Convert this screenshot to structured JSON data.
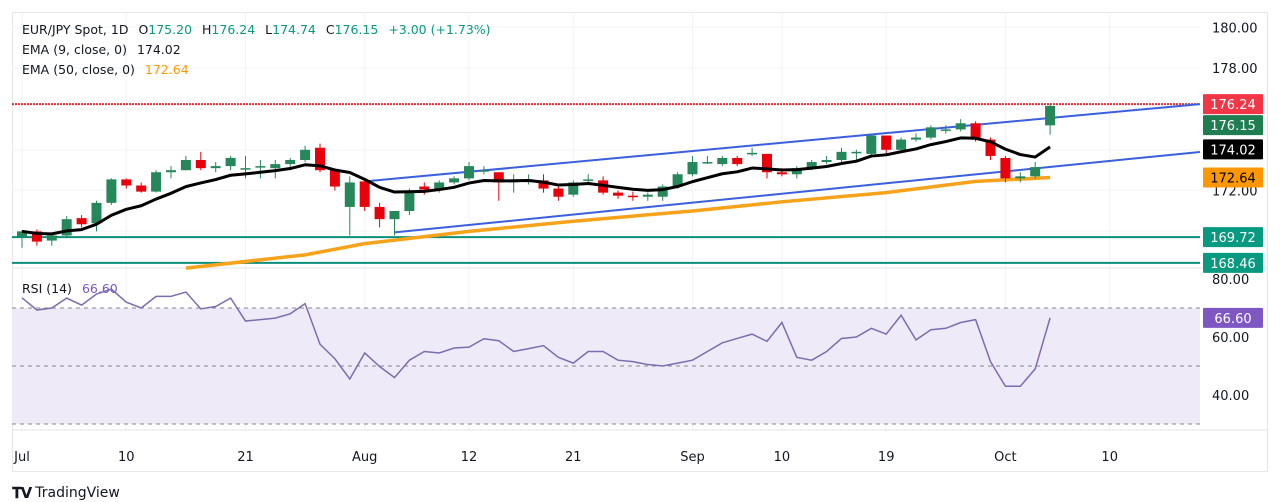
{
  "legend": {
    "symbol": "EUR/JPY Spot, 1D",
    "open_label": "O",
    "open": "175.20",
    "high_label": "H",
    "high": "176.24",
    "low_label": "L",
    "low": "174.74",
    "close_label": "C",
    "close": "176.15",
    "change": "+3.00 (+1.73%)",
    "ema9_label": "EMA (9, close, 0)",
    "ema9_value": "174.02",
    "ema50_label": "EMA (50, close, 0)",
    "ema50_value": "172.64",
    "rsi_label": "RSI (14)",
    "rsi_value": "66.60"
  },
  "footer": {
    "brand": "TradingView",
    "logo_icon": "tradingview-logo-icon"
  },
  "colors": {
    "up": "#26875a",
    "down": "#e8000b",
    "ema9": "#000000",
    "ema50": "#f7a21b",
    "channel": "#3a5fe0",
    "support": "#0b8f7a",
    "resistance": "#e0313f",
    "rsi": "#7e6bb0",
    "rsi_band": "#efeaf8"
  },
  "chart_data": [
    {
      "type": "candlestick",
      "title": "EUR/JPY Spot, 1D",
      "ylim": [
        167.8,
        180.6
      ],
      "price_ticks": [
        "180.00",
        "178.00",
        "172.00"
      ],
      "x_ticks": [
        {
          "label": "Jul",
          "date": "2024-07-01"
        },
        {
          "label": "10",
          "date": "2024-07-10"
        },
        {
          "label": "21",
          "date": "2024-07-22"
        },
        {
          "label": "Aug",
          "date": "2024-08-01"
        },
        {
          "label": "12",
          "date": "2024-08-12"
        },
        {
          "label": "21",
          "date": "2024-08-21"
        },
        {
          "label": "Sep",
          "date": "2024-09-02"
        },
        {
          "label": "10",
          "date": "2024-09-10"
        },
        {
          "label": "19",
          "date": "2024-09-19"
        },
        {
          "label": "Oct",
          "date": "2024-10-01"
        },
        {
          "label": "10",
          "date": "2024-10-10"
        }
      ],
      "columns": [
        "date",
        "open",
        "high",
        "low",
        "close"
      ],
      "candles": [
        [
          "2024-07-01",
          169.75,
          170.05,
          169.2,
          170.0
        ],
        [
          "2024-07-02",
          170.0,
          170.1,
          169.3,
          169.5
        ],
        [
          "2024-07-03",
          169.55,
          169.95,
          169.3,
          169.8
        ],
        [
          "2024-07-04",
          169.8,
          170.75,
          169.7,
          170.6
        ],
        [
          "2024-07-05",
          170.65,
          170.8,
          170.2,
          170.35
        ],
        [
          "2024-07-08",
          170.4,
          171.5,
          170.0,
          171.4
        ],
        [
          "2024-07-09",
          171.4,
          172.6,
          171.3,
          172.55
        ],
        [
          "2024-07-10",
          172.55,
          172.6,
          172.1,
          172.25
        ],
        [
          "2024-07-11",
          172.25,
          172.4,
          171.9,
          171.95
        ],
        [
          "2024-07-12",
          171.95,
          173.0,
          171.9,
          172.9
        ],
        [
          "2024-07-15",
          172.9,
          173.2,
          172.6,
          173.0
        ],
        [
          "2024-07-16",
          173.0,
          173.7,
          173.0,
          173.5
        ],
        [
          "2024-07-17",
          173.5,
          173.9,
          173.0,
          173.1
        ],
        [
          "2024-07-18",
          173.1,
          173.4,
          172.9,
          173.2
        ],
        [
          "2024-07-19",
          173.2,
          173.7,
          173.0,
          173.6
        ],
        [
          "2024-07-22",
          173.1,
          173.7,
          172.6,
          173.1
        ],
        [
          "2024-07-23",
          173.15,
          173.5,
          172.6,
          173.2
        ],
        [
          "2024-07-24",
          173.1,
          173.5,
          172.6,
          173.3
        ],
        [
          "2024-07-25",
          173.3,
          173.6,
          173.0,
          173.5
        ],
        [
          "2024-07-26",
          173.5,
          174.2,
          173.4,
          174.0
        ],
        [
          "2024-07-29",
          174.1,
          174.3,
          172.9,
          173.0
        ],
        [
          "2024-07-30",
          173.0,
          173.0,
          172.0,
          172.2
        ],
        [
          "2024-07-31",
          171.2,
          172.7,
          169.8,
          172.4
        ],
        [
          "2024-08-01",
          172.45,
          172.5,
          171.0,
          171.2
        ],
        [
          "2024-08-02",
          171.2,
          171.4,
          170.2,
          170.6
        ],
        [
          "2024-08-05",
          170.6,
          171.0,
          169.8,
          171.0
        ],
        [
          "2024-08-06",
          171.0,
          172.1,
          170.8,
          172.0
        ],
        [
          "2024-08-07",
          172.2,
          172.4,
          171.8,
          172.05
        ],
        [
          "2024-08-08",
          172.05,
          172.5,
          171.9,
          172.4
        ],
        [
          "2024-08-09",
          172.4,
          172.7,
          172.3,
          172.6
        ],
        [
          "2024-08-12",
          172.6,
          173.4,
          172.5,
          173.2
        ],
        [
          "2024-08-13",
          173.0,
          173.2,
          172.8,
          173.0
        ],
        [
          "2024-08-14",
          172.9,
          172.9,
          171.5,
          172.4
        ],
        [
          "2024-08-15",
          172.4,
          172.8,
          171.9,
          172.5
        ],
        [
          "2024-08-16",
          172.5,
          172.8,
          172.3,
          172.55
        ],
        [
          "2024-08-19",
          172.5,
          172.8,
          171.9,
          172.1
        ],
        [
          "2024-08-20",
          172.1,
          172.2,
          171.5,
          171.7
        ],
        [
          "2024-08-21",
          171.8,
          172.5,
          171.7,
          172.4
        ],
        [
          "2024-08-22",
          172.5,
          172.8,
          172.3,
          172.55
        ],
        [
          "2024-08-23",
          172.5,
          172.7,
          171.8,
          171.9
        ],
        [
          "2024-08-26",
          171.9,
          172.0,
          171.6,
          171.75
        ],
        [
          "2024-08-27",
          171.75,
          171.95,
          171.5,
          171.7
        ],
        [
          "2024-08-28",
          171.7,
          171.9,
          171.5,
          171.8
        ],
        [
          "2024-08-29",
          171.7,
          172.3,
          171.5,
          172.2
        ],
        [
          "2024-08-30",
          172.2,
          172.9,
          172.1,
          172.8
        ],
        [
          "2024-09-02",
          172.8,
          173.7,
          172.7,
          173.4
        ],
        [
          "2024-09-03",
          173.4,
          173.7,
          173.3,
          173.4
        ],
        [
          "2024-09-04",
          173.3,
          173.7,
          173.2,
          173.6
        ],
        [
          "2024-09-05",
          173.6,
          173.7,
          173.2,
          173.3
        ],
        [
          "2024-09-06",
          173.8,
          174.1,
          173.7,
          173.85
        ],
        [
          "2024-09-09",
          173.8,
          173.8,
          172.6,
          172.9
        ],
        [
          "2024-09-10",
          172.9,
          173.1,
          172.7,
          172.8
        ],
        [
          "2024-09-11",
          172.8,
          173.2,
          172.6,
          173.1
        ],
        [
          "2024-09-12",
          173.1,
          173.5,
          173.0,
          173.4
        ],
        [
          "2024-09-13",
          173.4,
          173.7,
          173.3,
          173.5
        ],
        [
          "2024-09-16",
          173.5,
          174.1,
          173.4,
          173.9
        ],
        [
          "2024-09-17",
          173.9,
          174.0,
          173.5,
          173.9
        ],
        [
          "2024-09-18",
          173.8,
          174.8,
          173.7,
          174.7
        ],
        [
          "2024-09-19",
          174.7,
          174.7,
          173.8,
          174.0
        ],
        [
          "2024-09-20",
          174.0,
          174.6,
          173.9,
          174.5
        ],
        [
          "2024-09-23",
          174.5,
          174.8,
          174.4,
          174.6
        ],
        [
          "2024-09-24",
          174.6,
          175.2,
          174.5,
          175.1
        ],
        [
          "2024-09-25",
          175.0,
          175.2,
          174.8,
          175.0
        ],
        [
          "2024-09-26",
          175.0,
          175.5,
          174.9,
          175.3
        ],
        [
          "2024-09-27",
          175.3,
          175.4,
          174.4,
          174.5
        ],
        [
          "2024-09-30",
          174.5,
          174.6,
          173.5,
          173.7
        ],
        [
          "2024-10-01",
          173.6,
          173.7,
          172.4,
          172.6
        ],
        [
          "2024-10-02",
          172.6,
          172.9,
          172.4,
          172.7
        ],
        [
          "2024-10-03",
          172.7,
          173.4,
          172.6,
          173.15
        ],
        [
          "2024-10-04",
          175.2,
          176.24,
          174.74,
          176.15
        ]
      ],
      "ema9": {
        "label": "EMA (9, close, 0)",
        "last": 174.02
      },
      "ema50": {
        "label": "EMA (50, close, 0)",
        "points": [
          [
            "2024-07-16",
            168.2
          ],
          [
            "2024-07-26",
            168.85
          ],
          [
            "2024-08-01",
            169.4
          ],
          [
            "2024-08-12",
            170.0
          ],
          [
            "2024-08-21",
            170.5
          ],
          [
            "2024-09-02",
            171.0
          ],
          [
            "2024-09-10",
            171.45
          ],
          [
            "2024-09-19",
            171.9
          ],
          [
            "2024-09-27",
            172.45
          ],
          [
            "2024-10-04",
            172.64
          ]
        ]
      },
      "channel": {
        "upper": [
          [
            "2024-08-01",
            172.45
          ],
          [
            "2024-10-04",
            175.56
          ]
        ],
        "lower": [
          [
            "2024-08-05",
            169.95
          ],
          [
            "2024-10-04",
            173.16
          ]
        ]
      },
      "horizontal_levels": [
        {
          "value": 176.24,
          "label": "176.24",
          "kind": "resistance"
        },
        {
          "value": 169.72,
          "label": "169.72",
          "kind": "support"
        },
        {
          "value": 168.46,
          "label": "168.46",
          "kind": "support"
        }
      ],
      "price_labels": [
        {
          "value": 176.24,
          "label": "176.24",
          "color": "#f23645",
          "text_color": "#ffffff"
        },
        {
          "value": 176.15,
          "label": "176.15",
          "color": "#1f7d52",
          "text_color": "#ffffff"
        },
        {
          "value": 174.02,
          "label": "174.02",
          "color": "#000000",
          "text_color": "#ffffff"
        },
        {
          "value": 172.64,
          "label": "172.64",
          "color": "#ff9800",
          "text_color": "#000000"
        },
        {
          "value": 169.72,
          "label": "169.72",
          "color": "#089981",
          "text_color": "#ffffff"
        },
        {
          "value": 168.46,
          "label": "168.46",
          "color": "#089981",
          "text_color": "#ffffff"
        }
      ]
    },
    {
      "type": "line",
      "title": "RSI (14)",
      "ylim": [
        25,
        83
      ],
      "ticks": [
        "80.00",
        "60.00",
        "40.00"
      ],
      "bands": [
        70,
        50,
        30
      ],
      "last_label": {
        "value": 66.6,
        "label": "66.60",
        "color": "#7e57c2"
      },
      "values": [
        73.5,
        69.3,
        70,
        73.4,
        71,
        74.8,
        76.5,
        72,
        70,
        74,
        74,
        75.5,
        69.7,
        70.5,
        73.4,
        65.5,
        66,
        66.5,
        68,
        71.5,
        57.5,
        52.5,
        45.5,
        54.5,
        49.8,
        46,
        52,
        55,
        54.5,
        56.2,
        56.5,
        59.4,
        58.7,
        55,
        56,
        57,
        53,
        51,
        55,
        55,
        52,
        51.5,
        50.5,
        50,
        51,
        52,
        55,
        58,
        59.5,
        61,
        58.5,
        65,
        53,
        52,
        55,
        59.5,
        60,
        63,
        61,
        67.5,
        59,
        62.5,
        63,
        65,
        66,
        51.5,
        43,
        43,
        49,
        66.6
      ]
    }
  ]
}
